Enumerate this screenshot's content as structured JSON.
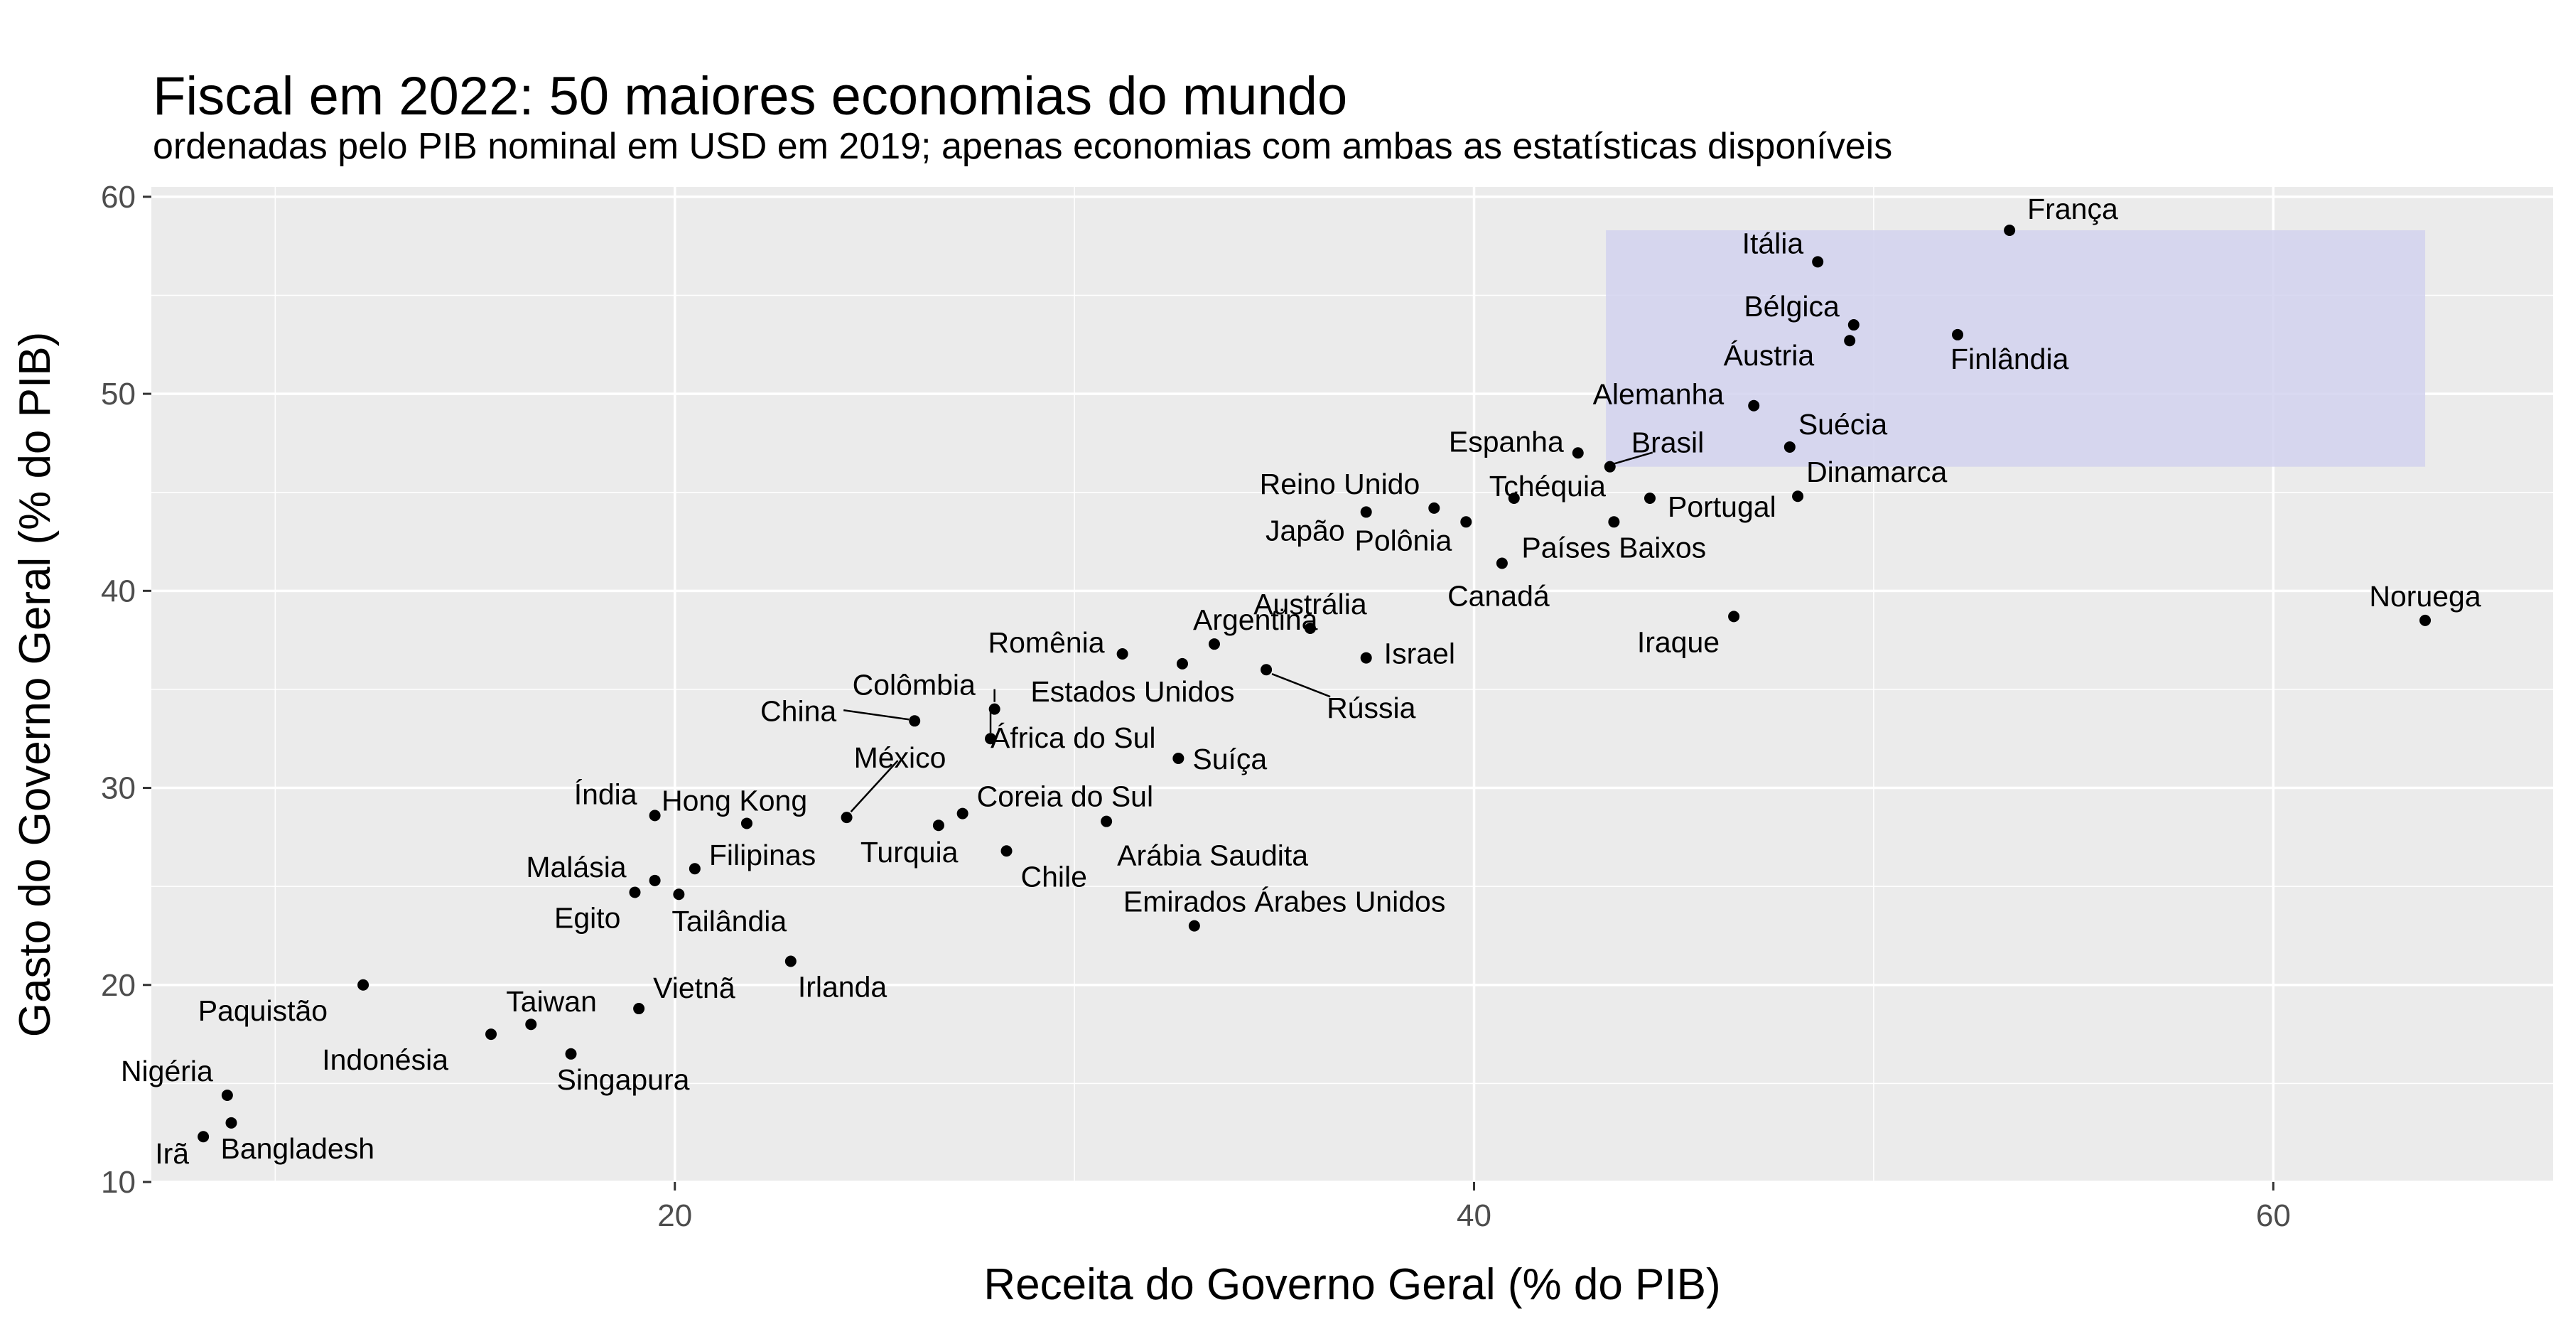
{
  "chart_data": {
    "type": "scatter",
    "title": "Fiscal em 2022: 50 maiores economias do mundo",
    "subtitle": "ordenadas pelo PIB nominal em USD em 2019; apenas economias com ambas as estatísticas disponíveis",
    "xlabel": "Receita do Governo Geral (% do PIB)",
    "ylabel": "Gasto do Governo Geral (% do PIB)",
    "xlim": [
      6.9,
      67.0
    ],
    "ylim": [
      10,
      60.5
    ],
    "xticks": [
      20,
      40,
      60
    ],
    "yticks": [
      10,
      20,
      30,
      40,
      50,
      60
    ],
    "grid": true,
    "colors": {
      "panel": "#ebebeb",
      "grid": "#ffffff",
      "point": "#000000",
      "highlight": "#d2d2ef"
    },
    "highlight_region": {
      "x": [
        43.3,
        63.8
      ],
      "y": [
        46.3,
        58.3
      ]
    },
    "points": [
      {
        "label": "França",
        "x": 53.4,
        "y": 58.3
      },
      {
        "label": "Itália",
        "x": 48.6,
        "y": 56.7
      },
      {
        "label": "Bélgica",
        "x": 49.5,
        "y": 53.5
      },
      {
        "label": "Áustria",
        "x": 49.4,
        "y": 52.7
      },
      {
        "label": "Finlândia",
        "x": 52.1,
        "y": 53.0
      },
      {
        "label": "Alemanha",
        "x": 47.0,
        "y": 49.4
      },
      {
        "label": "Suécia",
        "x": 47.9,
        "y": 47.3
      },
      {
        "label": "Espanha",
        "x": 42.6,
        "y": 47.0
      },
      {
        "label": "Brasil",
        "x": 43.4,
        "y": 46.3
      },
      {
        "label": "Dinamarca",
        "x": 48.1,
        "y": 44.8
      },
      {
        "label": "Portugal",
        "x": 44.4,
        "y": 44.7
      },
      {
        "label": "Tchéquia",
        "x": 41.0,
        "y": 44.7
      },
      {
        "label": "Reino Unido",
        "x": 39.0,
        "y": 44.2
      },
      {
        "label": "Japão",
        "x": 37.3,
        "y": 44.0
      },
      {
        "label": "Polônia",
        "x": 39.8,
        "y": 43.5
      },
      {
        "label": "Países Baixos",
        "x": 43.5,
        "y": 43.5
      },
      {
        "label": "Canadá",
        "x": 40.7,
        "y": 41.4
      },
      {
        "label": "Noruega",
        "x": 63.8,
        "y": 38.5
      },
      {
        "label": "Iraque",
        "x": 46.5,
        "y": 38.7
      },
      {
        "label": "Austrália",
        "x": 35.9,
        "y": 38.1
      },
      {
        "label": "Israel",
        "x": 37.3,
        "y": 36.6
      },
      {
        "label": "Argentina",
        "x": 33.5,
        "y": 37.3
      },
      {
        "label": "Romênia",
        "x": 31.2,
        "y": 36.8
      },
      {
        "label": "Estados Unidos",
        "x": 32.7,
        "y": 36.3
      },
      {
        "label": "Rússia",
        "x": 34.8,
        "y": 36.0
      },
      {
        "label": "Colômbia",
        "x": 28.0,
        "y": 34.0
      },
      {
        "label": "China",
        "x": 26.0,
        "y": 33.4
      },
      {
        "label": "África do Sul",
        "x": 27.9,
        "y": 32.5
      },
      {
        "label": "Suíça",
        "x": 32.6,
        "y": 31.5
      },
      {
        "label": "México",
        "x": 24.3,
        "y": 28.5
      },
      {
        "label": "Índia",
        "x": 19.5,
        "y": 28.6
      },
      {
        "label": "Hong Kong",
        "x": 21.8,
        "y": 28.2
      },
      {
        "label": "Coreia do Sul",
        "x": 27.2,
        "y": 28.7
      },
      {
        "label": "Turquia",
        "x": 26.6,
        "y": 28.1
      },
      {
        "label": "Arábia Saudita",
        "x": 30.8,
        "y": 28.3
      },
      {
        "label": "Chile",
        "x": 28.3,
        "y": 26.8
      },
      {
        "label": "Filipinas",
        "x": 20.5,
        "y": 25.9
      },
      {
        "label": "Malásia",
        "x": 19.5,
        "y": 25.3
      },
      {
        "label": "Egito",
        "x": 19.0,
        "y": 24.7
      },
      {
        "label": "Tailândia",
        "x": 20.1,
        "y": 24.6
      },
      {
        "label": "Emirados Árabes Unidos",
        "x": 33.0,
        "y": 23.0
      },
      {
        "label": "Irlanda",
        "x": 22.9,
        "y": 21.2
      },
      {
        "label": "Paquistão",
        "x": 12.2,
        "y": 20.0
      },
      {
        "label": "Vietnã",
        "x": 19.1,
        "y": 18.8
      },
      {
        "label": "Taiwan",
        "x": 16.4,
        "y": 18.0
      },
      {
        "label": "Indonésia",
        "x": 15.4,
        "y": 17.5
      },
      {
        "label": "Singapura",
        "x": 17.4,
        "y": 16.5
      },
      {
        "label": "Nigéria",
        "x": 8.8,
        "y": 14.4
      },
      {
        "label": "Bangladesh",
        "x": 8.9,
        "y": 13.0
      },
      {
        "label": "Irã",
        "x": 8.2,
        "y": 12.3
      }
    ]
  }
}
